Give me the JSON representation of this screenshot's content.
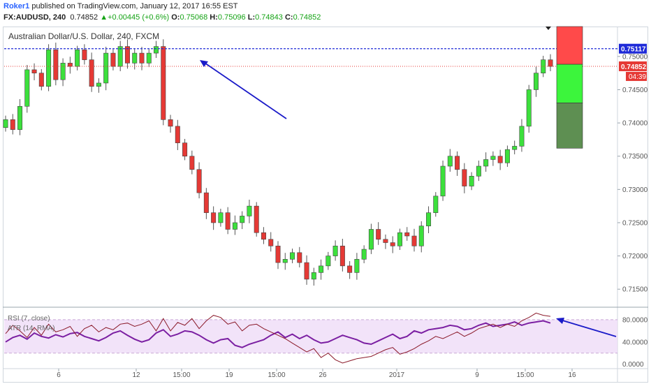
{
  "header": {
    "author": "Roker1",
    "published": "published on TradingView.com, January 12, 2017 16:55 EST",
    "symbol": "FX:AUDUSD, 240",
    "last": "0.74852",
    "change_arrow": "▲",
    "change": "+0.00445 (+0.6%)",
    "o_label": "O:",
    "o_value": "0.75068",
    "h_label": "H:",
    "h_value": "0.75096",
    "l_label": "L:",
    "l_value": "0.74843",
    "c_label": "C:",
    "c_value": "0.74852"
  },
  "chart_title": "Australian Dollar/U.S. Dollar, 240, FXCM",
  "price_tags": {
    "resistance": "0.75117",
    "last": "0.74852",
    "countdown": "04:39"
  },
  "colors": {
    "up": "#3ce03c",
    "down": "#e53935",
    "resistance": "#1e2ad8",
    "last": "#e53935",
    "rsi": "#8b1a2a",
    "atr": "#7b1fa2",
    "arrow": "#1a1ac8"
  },
  "indicators": {
    "rsi_label": "RSI (7, close)",
    "atr_label": "ATR (14, RMA)"
  },
  "chart_data": {
    "type": "candlestick",
    "title": "Australian Dollar/U.S. Dollar, 240, FXCM",
    "price_axis": {
      "ylim": [
        0.7125,
        0.7545
      ],
      "ticks": [
        "0.75000",
        "0.74500",
        "0.74000",
        "0.73500",
        "0.73000",
        "0.72500",
        "0.72000",
        "0.71500"
      ]
    },
    "time_ticks": [
      "6",
      "12",
      "15:00",
      "19",
      "15:00",
      "26",
      "2017",
      "9",
      "15:00",
      "16"
    ],
    "close_path": [
      0.7405,
      0.739,
      0.7425,
      0.748,
      0.7475,
      0.7455,
      0.751,
      0.7465,
      0.749,
      0.7485,
      0.751,
      0.7495,
      0.7455,
      0.746,
      0.7505,
      0.7485,
      0.7515,
      0.749,
      0.7505,
      0.749,
      0.7505,
      0.7515,
      0.7405,
      0.7395,
      0.737,
      0.735,
      0.733,
      0.7295,
      0.7265,
      0.725,
      0.7265,
      0.724,
      0.725,
      0.726,
      0.7275,
      0.7235,
      0.7225,
      0.7215,
      0.719,
      0.7195,
      0.7205,
      0.719,
      0.7165,
      0.7175,
      0.7185,
      0.72,
      0.7215,
      0.7185,
      0.7175,
      0.7195,
      0.721,
      0.724,
      0.7225,
      0.722,
      0.7215,
      0.7235,
      0.723,
      0.7215,
      0.7245,
      0.7265,
      0.729,
      0.7335,
      0.735,
      0.733,
      0.7305,
      0.732,
      0.7335,
      0.7345,
      0.735,
      0.734,
      0.736,
      0.7365,
      0.7395,
      0.745,
      0.7475,
      0.7495,
      0.7485
    ],
    "resistance_line": 0.75117,
    "last_price_line": 0.74852,
    "position_box": {
      "target": 0.7362,
      "entry": 0.74882,
      "stop": 0.7545
    },
    "rsi": {
      "name": "RSI (7, close)",
      "ticks": [
        "80.0000",
        "40.0000",
        "0.0000"
      ],
      "ylim": [
        -8,
        100
      ],
      "bands": [
        80,
        20
      ],
      "values": [
        55,
        70,
        60,
        48,
        66,
        52,
        72,
        58,
        62,
        68,
        50,
        64,
        70,
        58,
        66,
        62,
        72,
        74,
        68,
        72,
        78,
        60,
        82,
        60,
        75,
        70,
        82,
        64,
        78,
        88,
        84,
        72,
        76,
        60,
        70,
        72,
        64,
        58,
        52,
        46,
        38,
        30,
        22,
        28,
        12,
        20,
        8,
        2,
        6,
        10,
        12,
        14,
        20,
        26,
        30,
        18,
        22,
        28,
        36,
        42,
        50,
        46,
        52,
        58,
        50,
        56,
        64,
        68,
        72,
        66,
        72,
        68,
        78,
        84,
        92,
        88,
        86
      ]
    },
    "atr": {
      "name": "ATR (14, RMA)",
      "values": [
        40,
        48,
        52,
        45,
        56,
        50,
        47,
        53,
        49,
        55,
        57,
        50,
        46,
        42,
        48,
        56,
        60,
        52,
        45,
        40,
        44,
        56,
        62,
        50,
        54,
        60,
        58,
        52,
        44,
        38,
        44,
        46,
        34,
        30,
        36,
        40,
        44,
        52,
        58,
        48,
        54,
        46,
        52,
        44,
        38,
        40,
        46,
        52,
        48,
        44,
        38,
        36,
        42,
        48,
        54,
        46,
        50,
        60,
        56,
        62,
        64,
        66,
        70,
        68,
        62,
        64,
        70,
        74,
        68,
        70,
        72,
        76,
        70,
        74,
        76,
        78,
        74
      ]
    }
  }
}
